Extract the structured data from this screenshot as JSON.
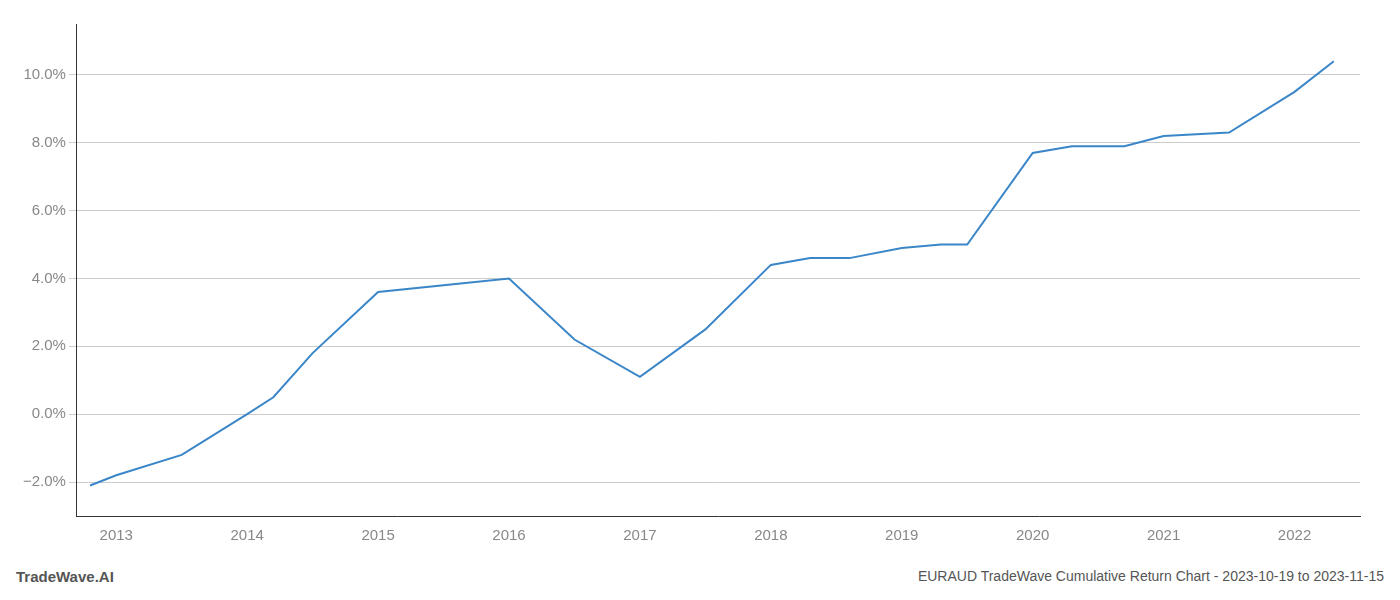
{
  "chart_data": {
    "type": "line",
    "title": "EURAUD TradeWave Cumulative Return Chart - 2023-10-19 to 2023-11-15",
    "annotations": [
      "TradeWave.AI"
    ],
    "x": [
      2012.8,
      2013.0,
      2013.5,
      2014.0,
      2014.2,
      2014.5,
      2015.0,
      2015.5,
      2016.0,
      2016.5,
      2017.0,
      2017.5,
      2018.0,
      2018.3,
      2018.6,
      2019.0,
      2019.3,
      2019.5,
      2020.0,
      2020.3,
      2020.7,
      2021.0,
      2021.5,
      2022.0,
      2022.3
    ],
    "values": [
      -0.021,
      -0.018,
      -0.012,
      0.0,
      0.005,
      0.018,
      0.036,
      0.038,
      0.04,
      0.022,
      0.011,
      0.025,
      0.044,
      0.046,
      0.046,
      0.049,
      0.05,
      0.05,
      0.077,
      0.079,
      0.079,
      0.082,
      0.083,
      0.095,
      0.104
    ],
    "color": "#3a86c8",
    "xlim": [
      2012.7,
      2022.5
    ],
    "xticks": [
      2013,
      2014,
      2015,
      2016,
      2017,
      2018,
      2019,
      2020,
      2021,
      2022
    ],
    "ylim": [
      -0.03,
      0.115
    ],
    "yticks": [
      {
        "value": -0.02,
        "label": "−2.0%"
      },
      {
        "value": 0.0,
        "label": "0.0%"
      },
      {
        "value": 0.02,
        "label": "2.0%"
      },
      {
        "value": 0.04,
        "label": "4.0%"
      },
      {
        "value": 0.06,
        "label": "6.0%"
      },
      {
        "value": 0.08,
        "label": "8.0%"
      },
      {
        "value": 0.1,
        "label": "10.0%"
      }
    ],
    "grid": "y"
  }
}
